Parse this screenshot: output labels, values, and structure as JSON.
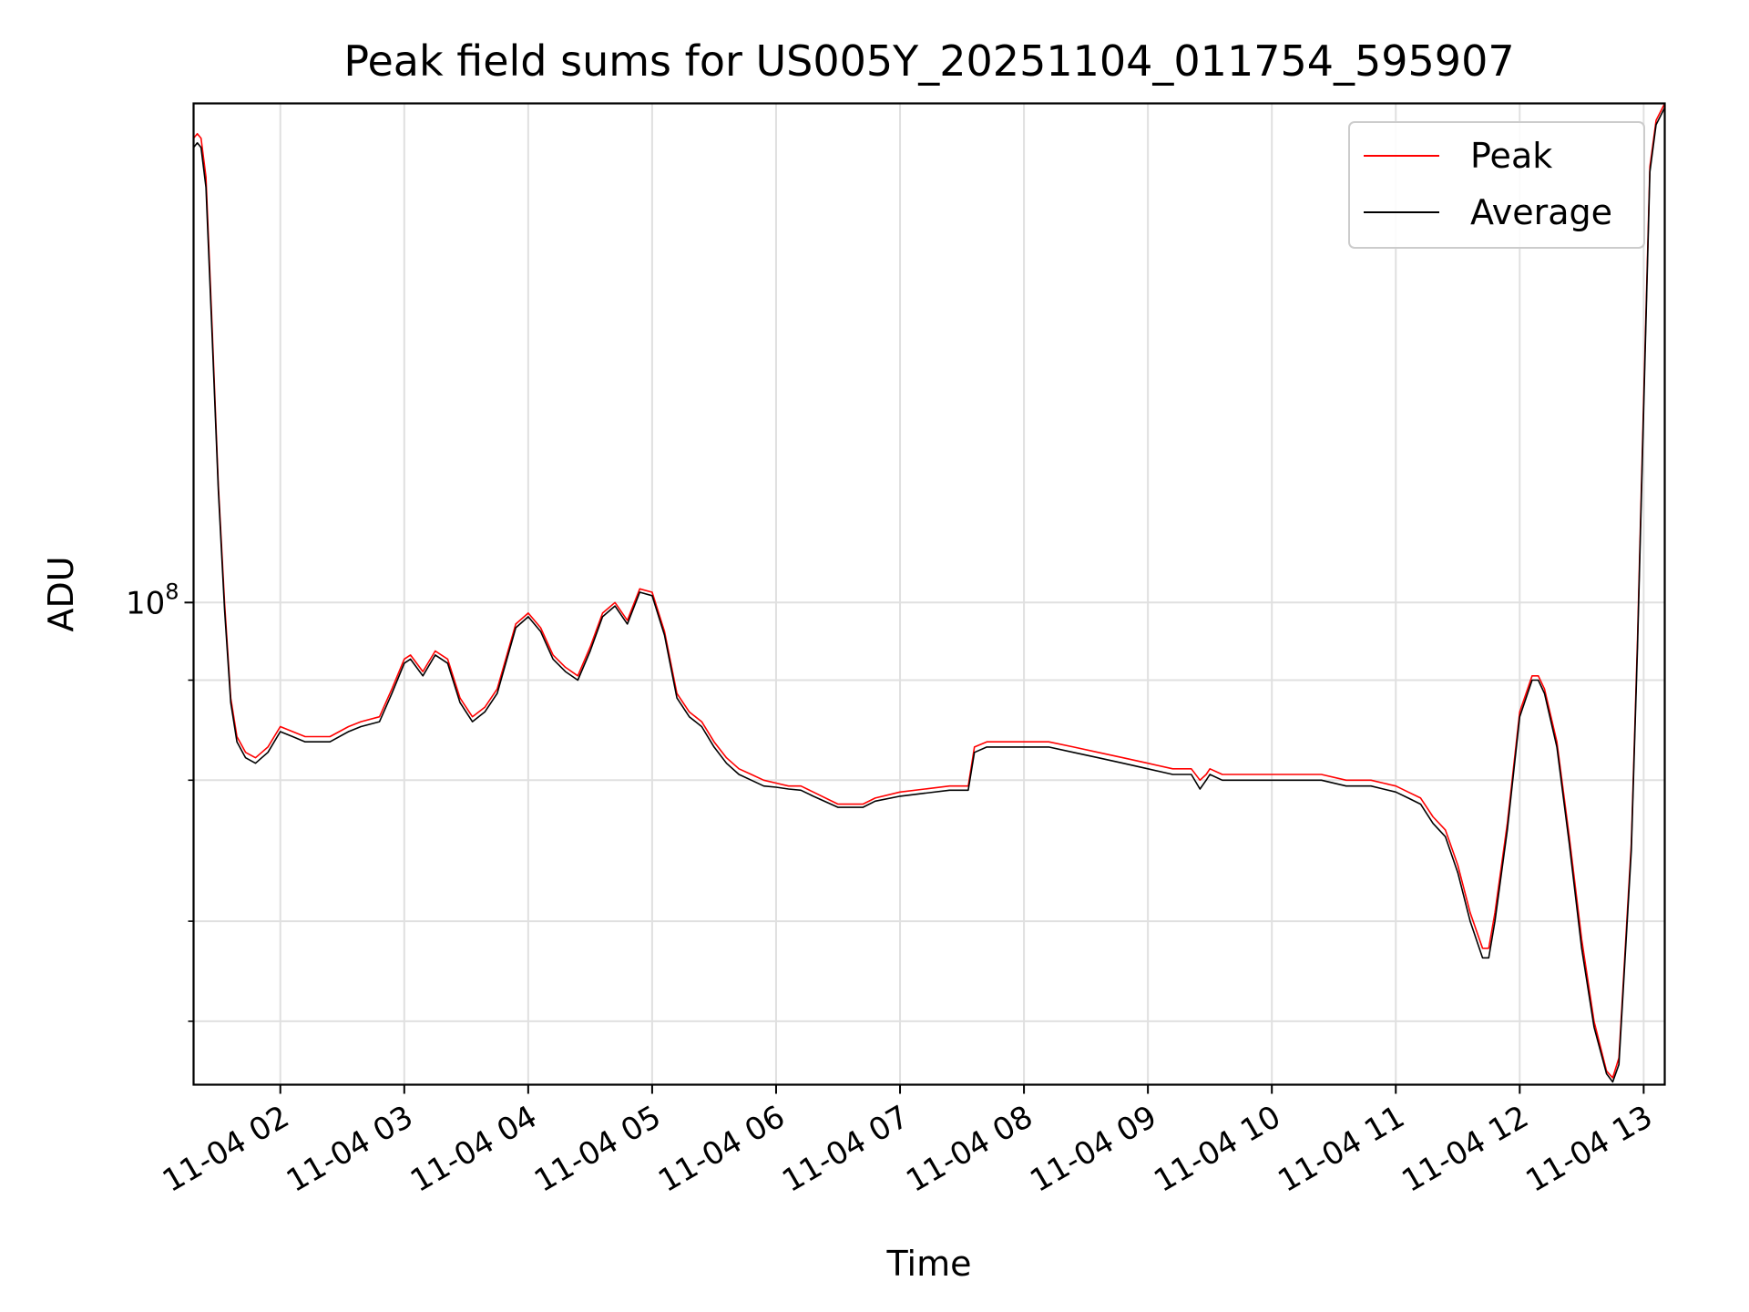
{
  "chart_data": {
    "type": "line",
    "title": "Peak field sums for US005Y_20251104_011754_595907",
    "xlabel": "Time",
    "ylabel": "ADU",
    "yscale": "log",
    "xlim": [
      1.3,
      13.17
    ],
    "ylim": [
      25000000,
      420000000
    ],
    "y_major_tick": {
      "value": 100000000,
      "base": "10",
      "exponent": "8"
    },
    "y_minor_ticks": [
      30000000,
      40000000,
      60000000,
      80000000
    ],
    "x_ticks": [
      {
        "value": 2,
        "label": "11-04 02"
      },
      {
        "value": 3,
        "label": "11-04 03"
      },
      {
        "value": 4,
        "label": "11-04 04"
      },
      {
        "value": 5,
        "label": "11-04 05"
      },
      {
        "value": 6,
        "label": "11-04 06"
      },
      {
        "value": 7,
        "label": "11-04 07"
      },
      {
        "value": 8,
        "label": "11-04 08"
      },
      {
        "value": 9,
        "label": "11-04 09"
      },
      {
        "value": 10,
        "label": "11-04 10"
      },
      {
        "value": 11,
        "label": "11-04 11"
      },
      {
        "value": 12,
        "label": "11-04 12"
      },
      {
        "value": 13,
        "label": "11-04 13"
      }
    ],
    "grid": true,
    "legend_position": "top-right",
    "series": [
      {
        "name": "Peak",
        "color": "#ff0000",
        "x": [
          1.3,
          1.33,
          1.36,
          1.4,
          1.45,
          1.5,
          1.55,
          1.6,
          1.65,
          1.72,
          1.8,
          1.85,
          1.9,
          2.0,
          2.1,
          2.2,
          2.3,
          2.4,
          2.55,
          2.65,
          2.8,
          2.9,
          3.0,
          3.05,
          3.15,
          3.25,
          3.35,
          3.45,
          3.55,
          3.65,
          3.75,
          3.9,
          4.0,
          4.1,
          4.2,
          4.3,
          4.4,
          4.5,
          4.6,
          4.7,
          4.8,
          4.9,
          5.0,
          5.1,
          5.2,
          5.3,
          5.4,
          5.5,
          5.6,
          5.7,
          5.8,
          5.9,
          6.0,
          6.1,
          6.2,
          6.3,
          6.5,
          6.7,
          6.8,
          7.0,
          7.2,
          7.4,
          7.55,
          7.6,
          7.7,
          7.8,
          8.0,
          8.2,
          8.4,
          8.6,
          8.8,
          9.0,
          9.2,
          9.35,
          9.42,
          9.47,
          9.5,
          9.6,
          9.8,
          10.0,
          10.2,
          10.4,
          10.6,
          10.8,
          10.9,
          11.0,
          11.1,
          11.2,
          11.3,
          11.4,
          11.5,
          11.6,
          11.7,
          11.75,
          11.8,
          11.9,
          12.0,
          12.1,
          12.15,
          12.2,
          12.3,
          12.4,
          12.5,
          12.6,
          12.7,
          12.75,
          12.8,
          12.9,
          12.95,
          13.0,
          13.05,
          13.1,
          13.17
        ],
        "values": [
          380000000,
          385000000,
          380000000,
          340000000,
          220000000,
          140000000,
          100000000,
          76000000,
          68000000,
          65000000,
          64000000,
          65000000,
          66000000,
          70000000,
          69000000,
          68000000,
          68000000,
          68000000,
          70000000,
          71000000,
          72000000,
          78000000,
          85000000,
          86000000,
          82000000,
          87000000,
          85000000,
          76000000,
          72000000,
          74000000,
          78000000,
          94000000,
          97000000,
          93000000,
          86000000,
          83000000,
          81000000,
          88000000,
          97000000,
          100000000,
          95000000,
          104000000,
          103000000,
          92000000,
          77000000,
          73000000,
          71000000,
          67000000,
          64000000,
          62000000,
          61000000,
          60000000,
          59500000,
          59000000,
          59000000,
          58000000,
          56000000,
          56000000,
          57000000,
          58000000,
          58500000,
          59000000,
          59000000,
          66000000,
          67000000,
          67000000,
          67000000,
          67000000,
          66000000,
          65000000,
          64000000,
          63000000,
          62000000,
          62000000,
          60000000,
          61000000,
          62000000,
          61000000,
          61000000,
          61000000,
          61000000,
          61000000,
          60000000,
          60000000,
          59500000,
          59000000,
          58000000,
          57000000,
          54000000,
          52000000,
          47000000,
          41000000,
          37000000,
          37000000,
          41000000,
          53000000,
          73000000,
          81000000,
          81000000,
          78000000,
          67000000,
          51000000,
          38000000,
          30000000,
          26000000,
          25500000,
          27000000,
          50000000,
          90000000,
          180000000,
          350000000,
          400000000,
          420000000
        ]
      },
      {
        "name": "Average",
        "color": "#000000",
        "x": [
          1.3,
          1.33,
          1.36,
          1.4,
          1.45,
          1.5,
          1.55,
          1.6,
          1.65,
          1.72,
          1.8,
          1.85,
          1.9,
          2.0,
          2.1,
          2.2,
          2.3,
          2.4,
          2.55,
          2.65,
          2.8,
          2.9,
          3.0,
          3.05,
          3.15,
          3.25,
          3.35,
          3.45,
          3.55,
          3.65,
          3.75,
          3.9,
          4.0,
          4.1,
          4.2,
          4.3,
          4.4,
          4.5,
          4.6,
          4.7,
          4.8,
          4.9,
          5.0,
          5.1,
          5.2,
          5.3,
          5.4,
          5.5,
          5.6,
          5.7,
          5.8,
          5.9,
          6.0,
          6.1,
          6.2,
          6.3,
          6.5,
          6.7,
          6.8,
          7.0,
          7.2,
          7.4,
          7.55,
          7.6,
          7.7,
          7.8,
          8.0,
          8.2,
          8.4,
          8.6,
          8.8,
          9.0,
          9.2,
          9.35,
          9.42,
          9.47,
          9.5,
          9.6,
          9.8,
          10.0,
          10.2,
          10.4,
          10.6,
          10.8,
          10.9,
          11.0,
          11.1,
          11.2,
          11.3,
          11.4,
          11.5,
          11.6,
          11.7,
          11.75,
          11.8,
          11.9,
          12.0,
          12.1,
          12.15,
          12.2,
          12.3,
          12.4,
          12.5,
          12.6,
          12.7,
          12.75,
          12.8,
          12.9,
          12.95,
          13.0,
          13.05,
          13.1,
          13.17
        ],
        "values": [
          370000000,
          375000000,
          370000000,
          330000000,
          215000000,
          138000000,
          98000000,
          75000000,
          67000000,
          64000000,
          63000000,
          64000000,
          65000000,
          69000000,
          68000000,
          67000000,
          67000000,
          67000000,
          69000000,
          70000000,
          71000000,
          77000000,
          84000000,
          85000000,
          81000000,
          86000000,
          84000000,
          75000000,
          71000000,
          73000000,
          77000000,
          93000000,
          96000000,
          92000000,
          85000000,
          82000000,
          80000000,
          87000000,
          96000000,
          99000000,
          94000000,
          103000000,
          102000000,
          91000000,
          76000000,
          72000000,
          70000000,
          66000000,
          63000000,
          61000000,
          60000000,
          59000000,
          58800000,
          58500000,
          58300000,
          57300000,
          55500000,
          55500000,
          56500000,
          57300000,
          57800000,
          58300000,
          58300000,
          65000000,
          66000000,
          66000000,
          66000000,
          66000000,
          65000000,
          64000000,
          63000000,
          62000000,
          61000000,
          61000000,
          58500000,
          60000000,
          61000000,
          60000000,
          60000000,
          60000000,
          60000000,
          60000000,
          59000000,
          59000000,
          58500000,
          58000000,
          57000000,
          56000000,
          53000000,
          51000000,
          46000000,
          40000000,
          36000000,
          36000000,
          40000000,
          52000000,
          72000000,
          80000000,
          80000000,
          77000000,
          66000000,
          50000000,
          37000000,
          29500000,
          25800000,
          25200000,
          26500000,
          49000000,
          88000000,
          175000000,
          345000000,
          395000000,
          415000000
        ]
      }
    ]
  }
}
